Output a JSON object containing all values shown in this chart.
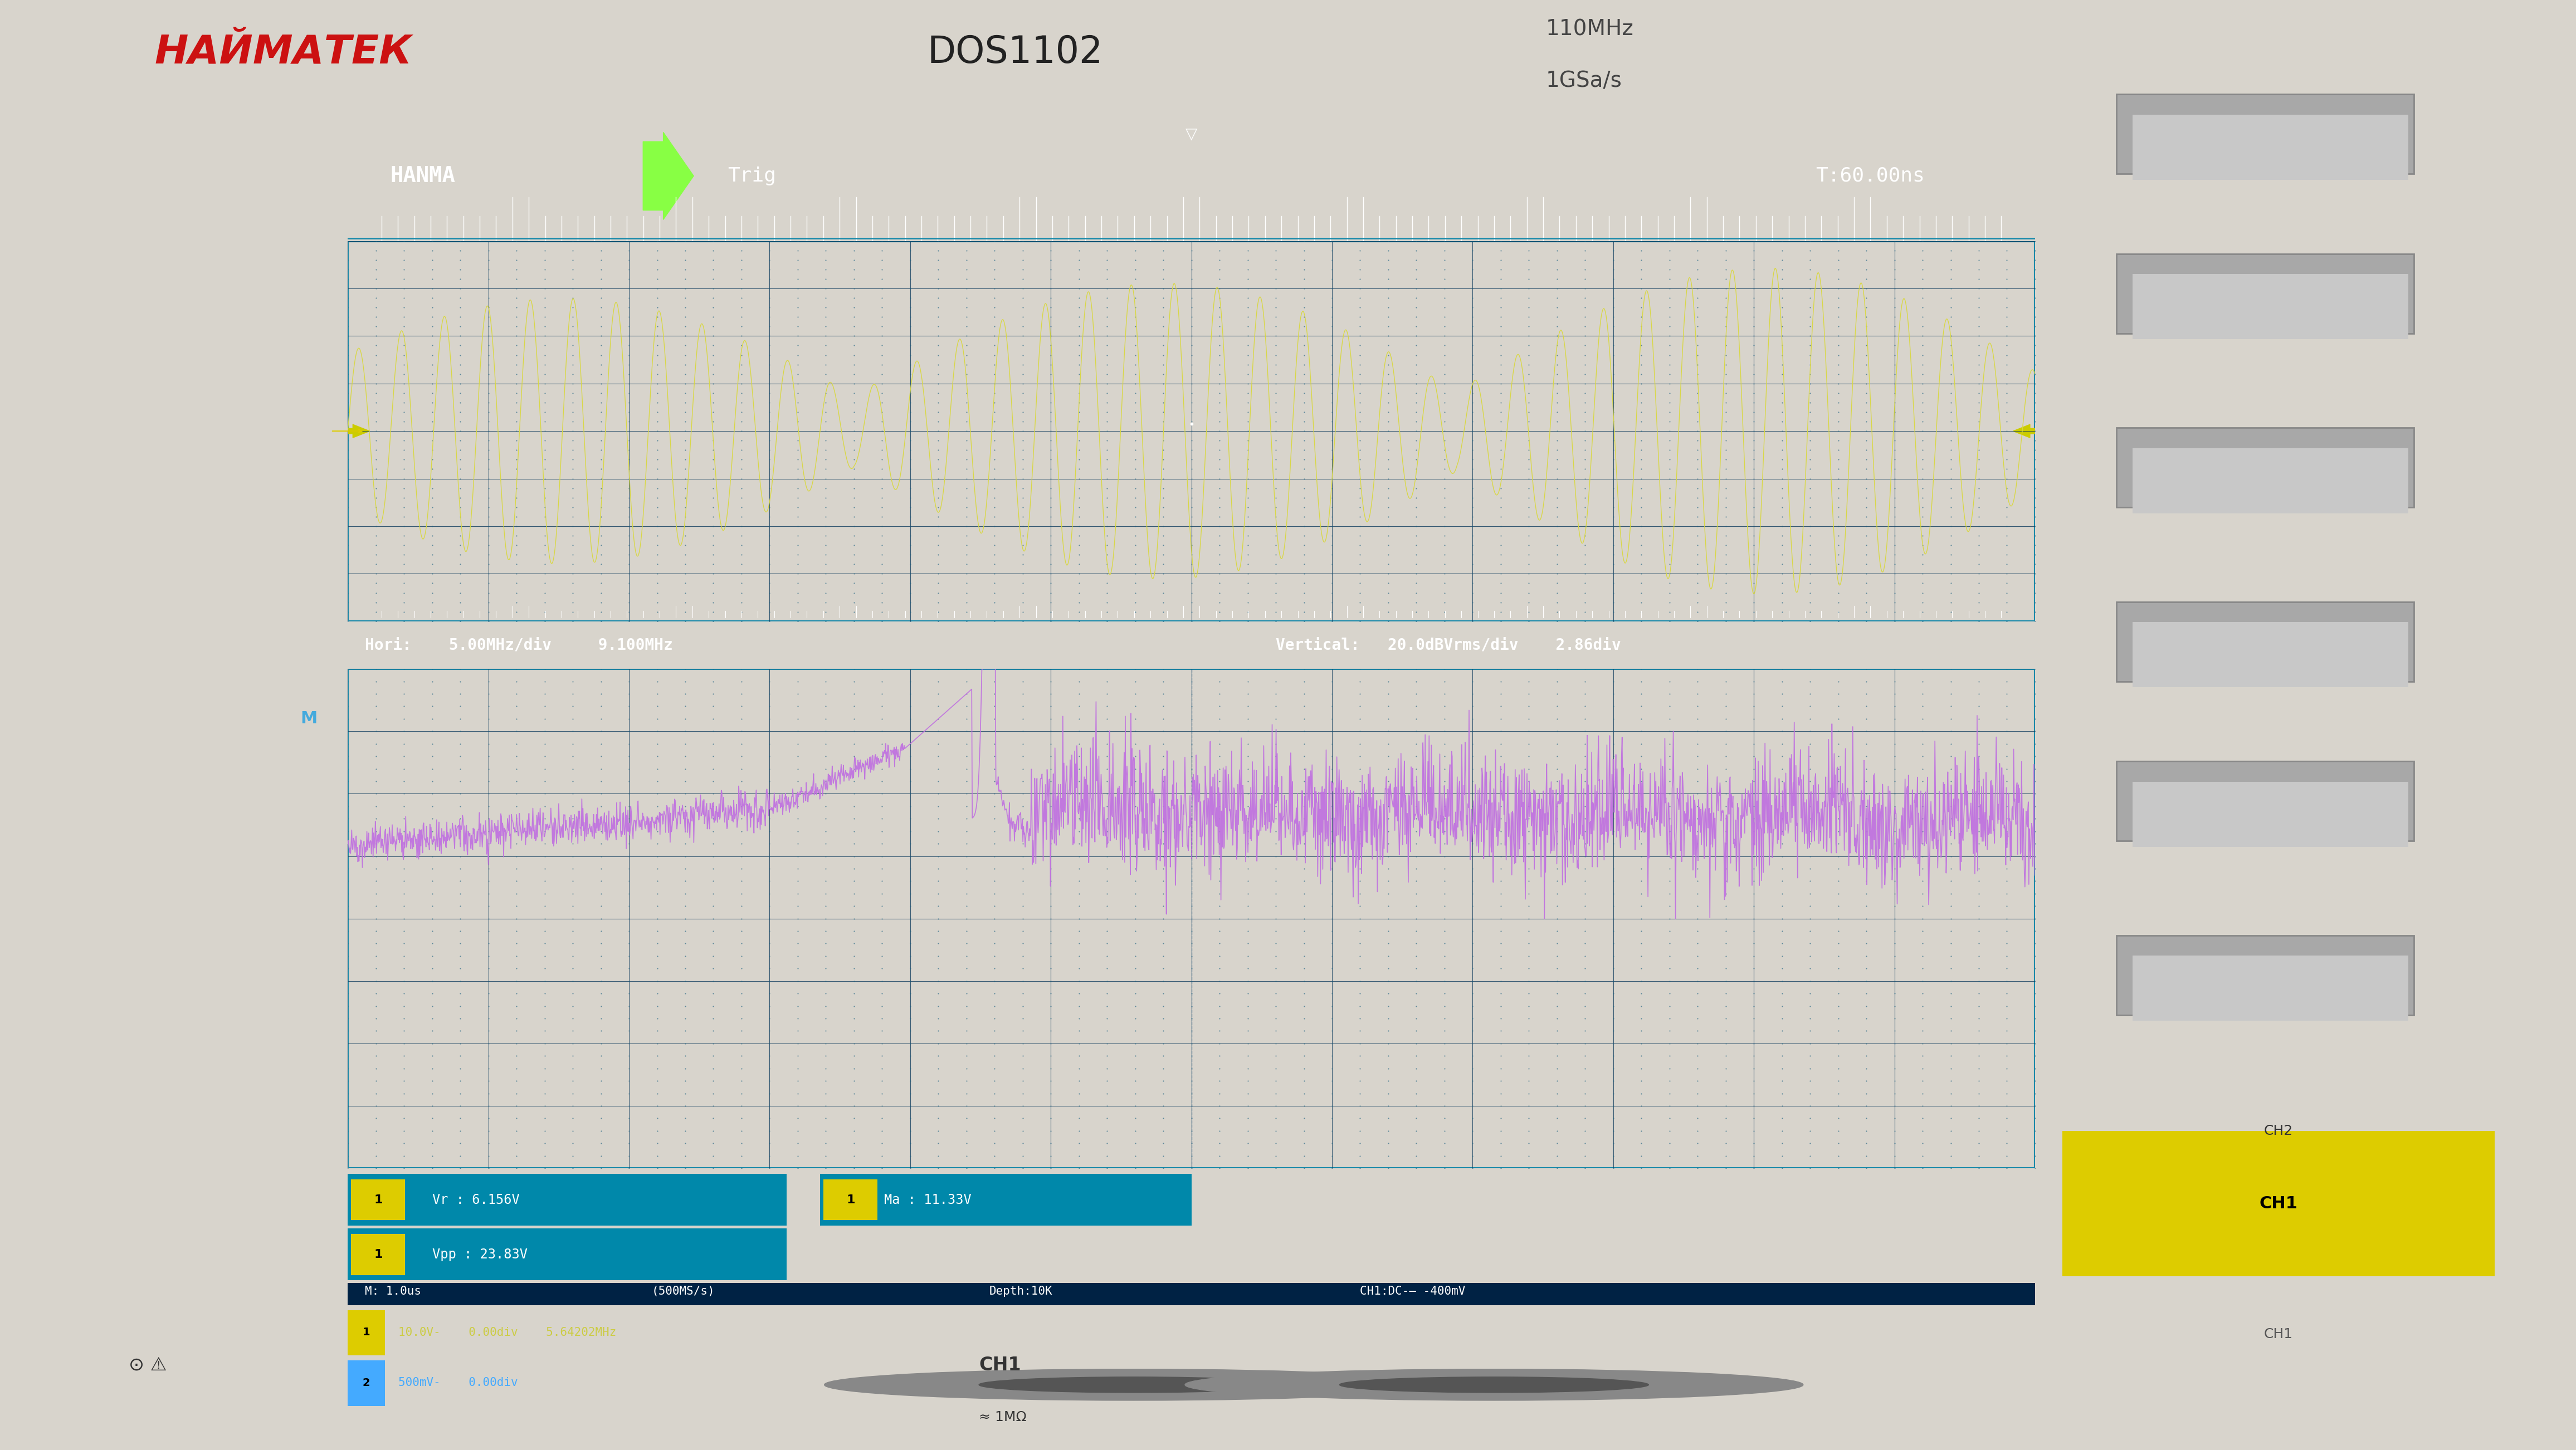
{
  "fig_width": 46.24,
  "fig_height": 26.04,
  "body_color": "#d8d4cc",
  "screen_bg": "#050d1a",
  "screen_border_color": "#1a8aaa",
  "header_bg": "#0a1830",
  "divider_bg": "#0a9aaa",
  "status_bg": "#0a9aaa",
  "grid_line_color": "#0d3a5c",
  "grid_dot_color": "#0d5a7a",
  "waveform_color_top": "#d8d840",
  "waveform_color_bottom": "#c070e0",
  "header_hanma": "HANMA",
  "header_trig": "Trig",
  "header_time": "T:60.00ns",
  "hori_label": "Hori:    5.00MHz/div     9.100MHz",
  "vert_label": "Vertical:   20.0dBVrms/div    2.86div",
  "ch1_vr": "Vr : 6.156V",
  "ch1_vpp": "Vpp : 23.83V",
  "ch1_ma": "Ma : 11.33V",
  "status_m": "M: 1.0us",
  "status_rate": "(500MS/s)",
  "status_depth": "Depth:10K",
  "status_ch1": "CH1:DC-̲ -400mV",
  "ch1_scale": "10.0V-",
  "ch1_offset": "0.00div",
  "ch1_freq": "5.64202MHz",
  "ch2_scale": "500mV-",
  "ch2_offset": "0.00div",
  "brand_text": "НАЙМАТЕК",
  "model_text": "DOS1102",
  "spec1": "110MHz",
  "spec2": "1GSa/s",
  "ch1_label_yellow": "1",
  "ch2_label_blue": "2"
}
